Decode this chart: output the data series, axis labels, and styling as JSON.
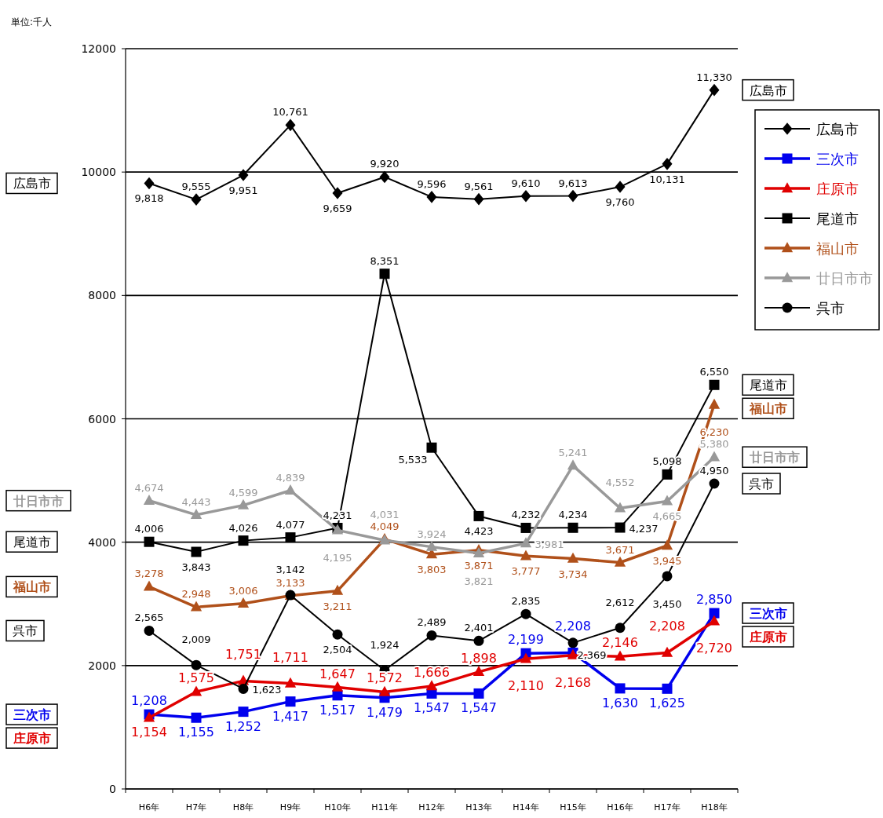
{
  "chart_data": {
    "type": "line",
    "categories": [
      "H6年",
      "H7年",
      "H8年",
      "H9年",
      "H10年",
      "H11年",
      "H12年",
      "H13年",
      "H14年",
      "H15年",
      "H16年",
      "H17年",
      "H18年"
    ],
    "ylim": [
      0,
      12000
    ],
    "yticks": [
      0,
      2000,
      4000,
      6000,
      8000,
      10000,
      12000
    ],
    "grid": "y",
    "legend": "right",
    "annotations": [
      "単位:千人"
    ],
    "series": [
      {
        "name": "広島市",
        "color": "#000000",
        "marker": "diamond",
        "values": [
          9818,
          9555,
          9951,
          10761,
          9659,
          9920,
          9596,
          9561,
          9610,
          9613,
          9760,
          10131,
          11330
        ],
        "value_labels": [
          "9,818",
          "9,555",
          "9,951",
          "10,761",
          "9,659",
          "9,920",
          "9,596",
          "9,561",
          "9,610",
          "9,613",
          "9,760",
          "10,131",
          "11,330"
        ]
      },
      {
        "name": "三次市",
        "color": "#0000ee",
        "marker": "square",
        "values": [
          1208,
          1155,
          1252,
          1417,
          1517,
          1479,
          1547,
          1547,
          2199,
          2208,
          1630,
          1625,
          2850
        ],
        "value_labels": [
          "1,208",
          "1,155",
          "1,252",
          "1,417",
          "1,517",
          "1,479",
          "1,547",
          "1,547",
          "2,199",
          "2,208",
          "1,630",
          "1,625",
          "2,850"
        ]
      },
      {
        "name": "庄原市",
        "color": "#e00000",
        "marker": "triangle",
        "values": [
          1154,
          1575,
          1751,
          1711,
          1647,
          1572,
          1666,
          1898,
          2110,
          2168,
          2146,
          2208,
          2720
        ],
        "value_labels": [
          "1,154",
          "1,575",
          "1,751",
          "1,711",
          "1,647",
          "1,572",
          "1,666",
          "1,898",
          "2,110",
          "2,168",
          "2,146",
          "2,208",
          "2,720"
        ]
      },
      {
        "name": "尾道市",
        "color": "#000000",
        "marker": "square",
        "values": [
          4006,
          3843,
          4026,
          4077,
          4231,
          8351,
          5533,
          4423,
          4232,
          4234,
          4237,
          5098,
          6550
        ],
        "value_labels": [
          "4,006",
          "3,843",
          "4,026",
          "4,077",
          "4,231",
          "8,351",
          "5,533",
          "4,423",
          "4,232",
          "4,234",
          "4,237",
          "5,098",
          "6,550"
        ]
      },
      {
        "name": "福山市",
        "color": "#b0501a",
        "marker": "triangle",
        "values": [
          3278,
          2948,
          3006,
          3133,
          3211,
          4049,
          3803,
          3871,
          3777,
          3734,
          3671,
          3945,
          6230
        ],
        "value_labels": [
          "3,278",
          "2,948",
          "3,006",
          "3,133",
          "3,211",
          "4,049",
          "3,803",
          "3,871",
          "3,777",
          "3,734",
          "3,671",
          "3,945",
          "6,230"
        ]
      },
      {
        "name": "廿日市市",
        "color": "#999999",
        "marker": "triangle",
        "values": [
          4674,
          4443,
          4599,
          4839,
          4195,
          4031,
          3924,
          3821,
          3981,
          5241,
          4552,
          4665,
          5380
        ],
        "value_labels": [
          "4,674",
          "4,443",
          "4,599",
          "4,839",
          "4,195",
          "4,031",
          "3,924",
          "3,821",
          "3,981",
          "5,241",
          "4,552",
          "4,665",
          "5,380"
        ]
      },
      {
        "name": "呉市",
        "color": "#000000",
        "marker": "circle",
        "values": [
          2565,
          2009,
          1623,
          3142,
          2504,
          1924,
          2489,
          2401,
          2835,
          2369,
          2612,
          3450,
          4950
        ],
        "value_labels": [
          "2,565",
          "2,009",
          "1,623",
          "3,142",
          "2,504",
          "1,924",
          "2,489",
          "2,401",
          "2,835",
          "2,369",
          "2,612",
          "3,450",
          "4,950"
        ]
      }
    ]
  }
}
